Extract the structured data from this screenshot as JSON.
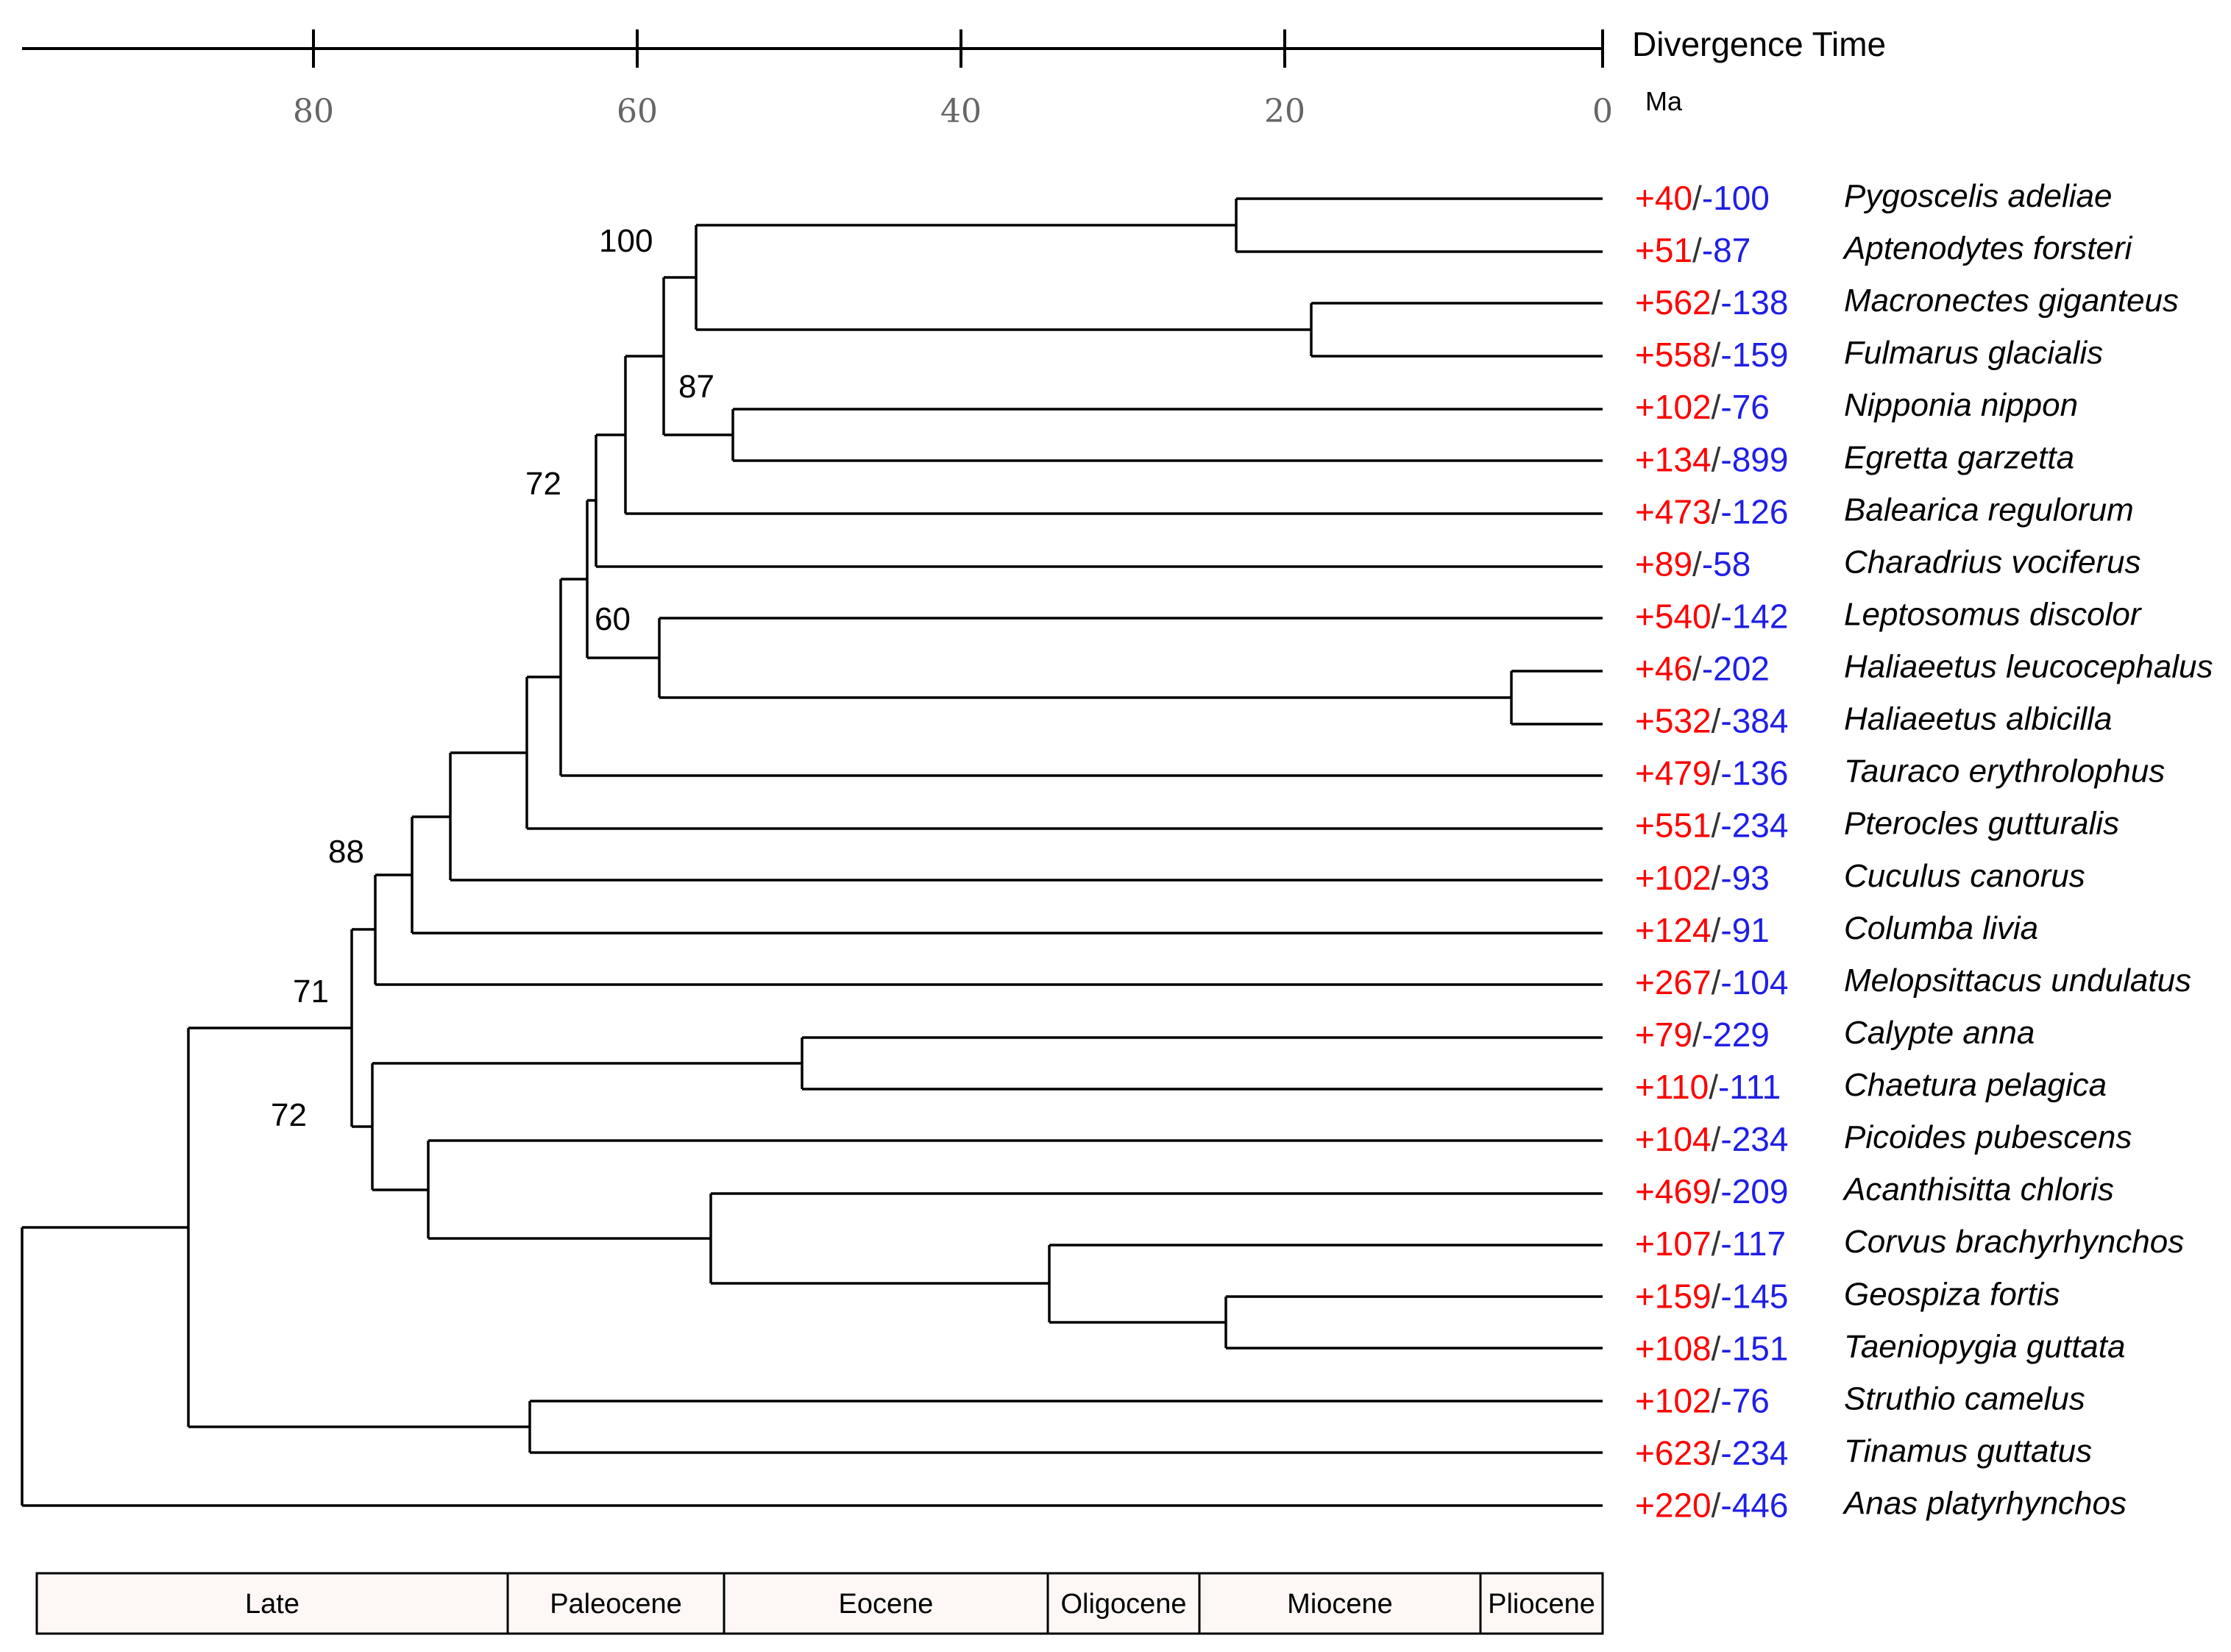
{
  "axis": {
    "title": "Divergence Time",
    "unit": "Ma",
    "ticks": [
      "80",
      "60",
      "40",
      "20",
      "0"
    ]
  },
  "colors": {
    "gain": "#ff0000",
    "loss": "#1f1fe6"
  },
  "taxa": [
    {
      "species": "Pygoscelis adeliae",
      "gain": "+40",
      "loss": "-100"
    },
    {
      "species": "Aptenodytes forsteri",
      "gain": "+51",
      "loss": "-87"
    },
    {
      "species": "Macronectes giganteus",
      "gain": "+562",
      "loss": "-138"
    },
    {
      "species": "Fulmarus glacialis",
      "gain": "+558",
      "loss": "-159"
    },
    {
      "species": "Nipponia nippon",
      "gain": "+102",
      "loss": "-76"
    },
    {
      "species": "Egretta garzetta",
      "gain": "+134",
      "loss": "-899"
    },
    {
      "species": "Balearica regulorum",
      "gain": "+473",
      "loss": "-126"
    },
    {
      "species": "Charadrius vociferus",
      "gain": "+89",
      "loss": "-58"
    },
    {
      "species": "Leptosomus discolor",
      "gain": "+540",
      "loss": "-142"
    },
    {
      "species": "Haliaeetus leucocephalus",
      "gain": "+46",
      "loss": "-202"
    },
    {
      "species": "Haliaeetus albicilla",
      "gain": "+532",
      "loss": "-384"
    },
    {
      "species": "Tauraco erythrolophus",
      "gain": "+479",
      "loss": "-136"
    },
    {
      "species": "Pterocles gutturalis",
      "gain": "+551",
      "loss": "-234"
    },
    {
      "species": "Cuculus canorus",
      "gain": "+102",
      "loss": "-93"
    },
    {
      "species": "Columba livia",
      "gain": "+124",
      "loss": "-91"
    },
    {
      "species": "Melopsittacus undulatus",
      "gain": "+267",
      "loss": "-104"
    },
    {
      "species": "Calypte anna",
      "gain": "+79",
      "loss": "-229"
    },
    {
      "species": "Chaetura pelagica",
      "gain": "+110",
      "loss": "-111"
    },
    {
      "species": "Picoides pubescens",
      "gain": "+104",
      "loss": "-234"
    },
    {
      "species": "Acanthisitta chloris",
      "gain": "+469",
      "loss": "-209"
    },
    {
      "species": "Corvus brachyrhynchos",
      "gain": "+107",
      "loss": "-117"
    },
    {
      "species": "Geospiza fortis",
      "gain": "+159",
      "loss": "-145"
    },
    {
      "species": "Taeniopygia guttata",
      "gain": "+108",
      "loss": "-151"
    },
    {
      "species": "Struthio camelus",
      "gain": "+102",
      "loss": "-76"
    },
    {
      "species": "Tinamus guttatus",
      "gain": "+623",
      "loss": "-234"
    },
    {
      "species": "Anas platyrhynchos",
      "gain": "+220",
      "loss": "-446"
    }
  ],
  "node_support": [
    "100",
    "87",
    "72",
    "60",
    "88",
    "71",
    "72"
  ],
  "epochs": [
    "Late",
    "Paleocene",
    "Eocene",
    "Oligocene",
    "Miocene",
    "Pliocene"
  ]
}
